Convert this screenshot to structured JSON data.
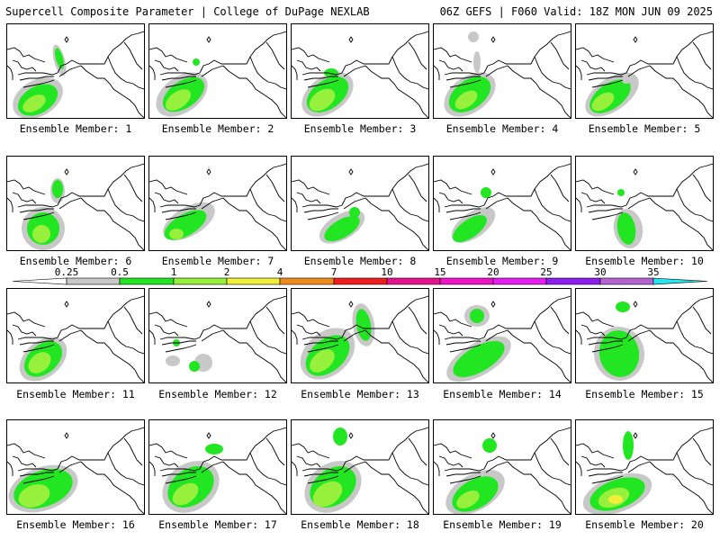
{
  "header": {
    "left": "Supercell Composite Parameter | College of DuPage NEXLAB",
    "right": "06Z GEFS | F060 Valid: 18Z MON JUN 09 2025"
  },
  "legend": {
    "labels": [
      "0.25",
      "0.5",
      "1",
      "2",
      "4",
      "7",
      "10",
      "15",
      "20",
      "25",
      "30",
      "35"
    ],
    "colors": [
      "#c8c8c8",
      "#22e622",
      "#96f03c",
      "#f0f03c",
      "#f08c1e",
      "#f01e1e",
      "#e6148c",
      "#f014c8",
      "#e61ef0",
      "#8c1ef0",
      "#b464d2",
      "#28e6f0"
    ]
  },
  "members": [
    {
      "label": "Ensemble Member: 1"
    },
    {
      "label": "Ensemble Member: 2"
    },
    {
      "label": "Ensemble Member: 3"
    },
    {
      "label": "Ensemble Member: 4"
    },
    {
      "label": "Ensemble Member: 5"
    },
    {
      "label": "Ensemble Member: 6"
    },
    {
      "label": "Ensemble Member: 7"
    },
    {
      "label": "Ensemble Member: 8"
    },
    {
      "label": "Ensemble Member: 9"
    },
    {
      "label": "Ensemble Member: 10"
    },
    {
      "label": "Ensemble Member: 11"
    },
    {
      "label": "Ensemble Member: 12"
    },
    {
      "label": "Ensemble Member: 13"
    },
    {
      "label": "Ensemble Member: 14"
    },
    {
      "label": "Ensemble Member: 15"
    },
    {
      "label": "Ensemble Member: 16"
    },
    {
      "label": "Ensemble Member: 17"
    },
    {
      "label": "Ensemble Member: 18"
    },
    {
      "label": "Ensemble Member: 19"
    },
    {
      "label": "Ensemble Member: 20"
    }
  ]
}
